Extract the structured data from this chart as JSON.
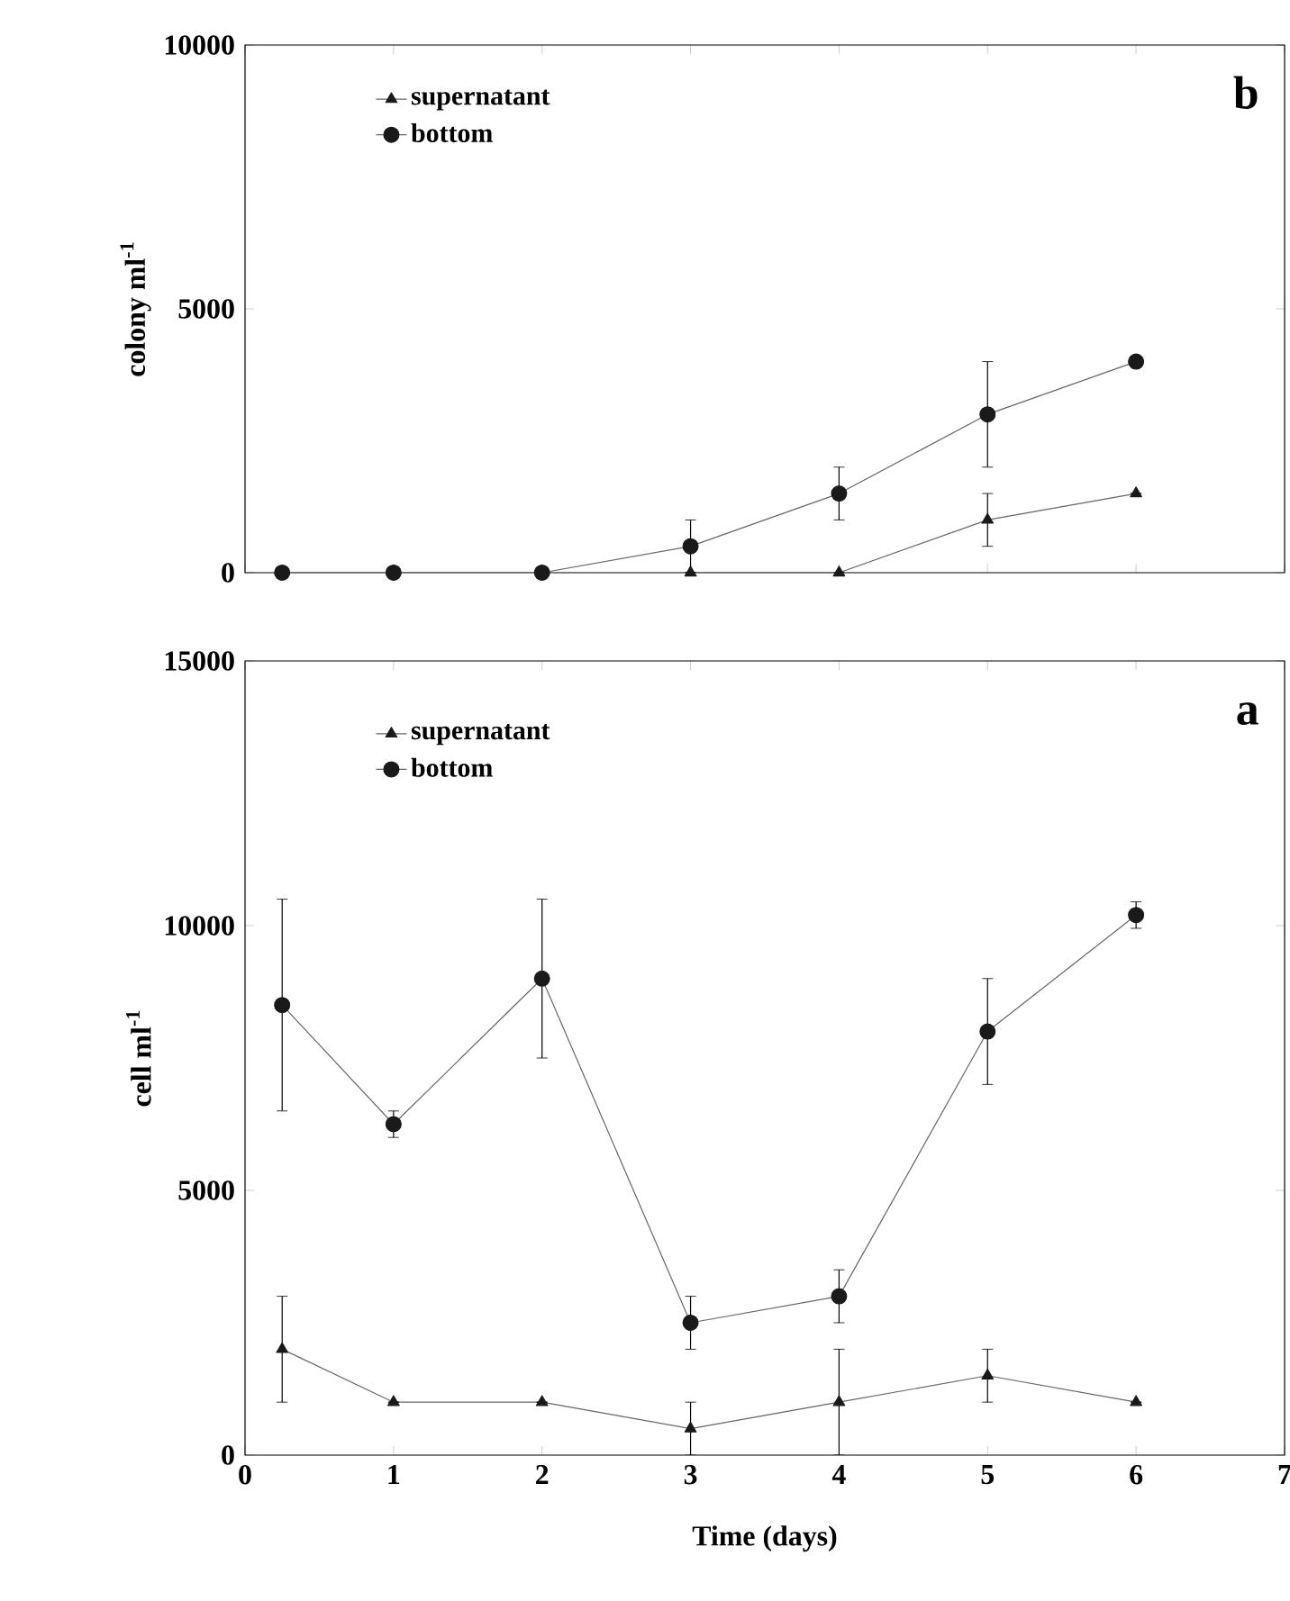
{
  "chart_data": [
    {
      "type": "line",
      "ylabel": "colony ml$^{-1}$",
      "annotations": [
        "b"
      ],
      "x": [
        0.25,
        1,
        2,
        3,
        4,
        5,
        6
      ],
      "xlim": [
        0,
        7
      ],
      "xticks": [
        0,
        1,
        2,
        3,
        4,
        5,
        6,
        7
      ],
      "ylim": [
        0,
        10000
      ],
      "yticks": [
        0,
        5000,
        10000
      ],
      "tick_labels": "y",
      "legend": "top left",
      "series": [
        {
          "name": "supernatant",
          "color": "#1a1a1a",
          "marker": "triangle",
          "values": [
            null,
            null,
            null,
            0,
            0,
            1000,
            1500
          ],
          "errors": [
            null,
            null,
            null,
            null,
            null,
            500,
            null
          ]
        },
        {
          "name": "bottom",
          "color": "#1a1a1a",
          "marker": "circle",
          "values": [
            0,
            0,
            0,
            500,
            1500,
            3000,
            4000
          ],
          "errors": [
            null,
            null,
            null,
            500,
            500,
            1000,
            null
          ]
        }
      ]
    },
    {
      "type": "line",
      "ylabel": "cell ml$^{-1}$",
      "xlabel": "Time (days)",
      "annotations": [
        "a"
      ],
      "x": [
        0.25,
        1,
        2,
        3,
        4,
        5,
        6
      ],
      "xlim": [
        0,
        7
      ],
      "xticks": [
        0,
        1,
        2,
        3,
        4,
        5,
        6,
        7
      ],
      "ylim": [
        0,
        15000
      ],
      "yticks": [
        0,
        5000,
        10000,
        15000
      ],
      "legend": "top left",
      "series": [
        {
          "name": "supernatant",
          "color": "#1a1a1a",
          "marker": "triangle",
          "values": [
            2000,
            1000,
            1000,
            500,
            1000,
            1500,
            1000
          ],
          "errors": [
            1000,
            null,
            null,
            500,
            1000,
            500,
            null
          ]
        },
        {
          "name": "bottom",
          "color": "#1a1a1a",
          "marker": "circle",
          "values": [
            8500,
            6250,
            9000,
            2500,
            3000,
            8000,
            10200
          ],
          "errors": [
            2000,
            250,
            1500,
            500,
            500,
            1000,
            250
          ]
        }
      ]
    }
  ]
}
